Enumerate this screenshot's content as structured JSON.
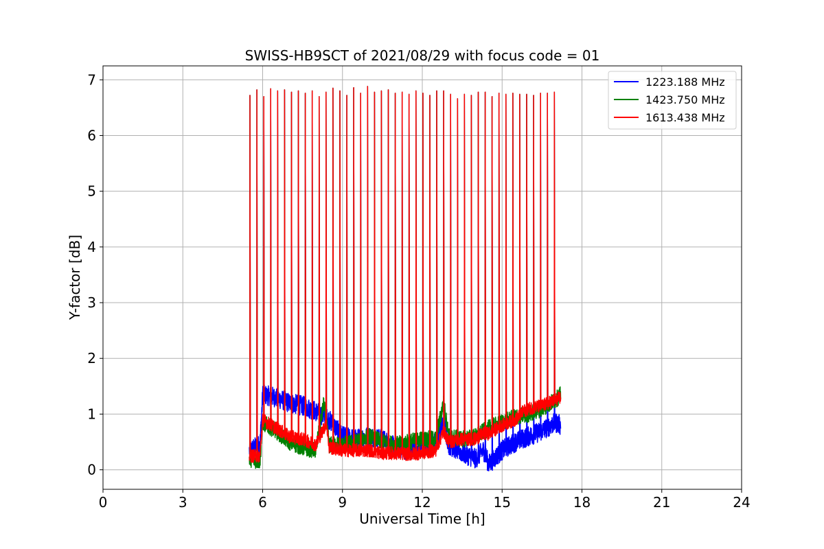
{
  "chart_data": {
    "type": "line",
    "title": "SWISS-HB9SCT of 2021/08/29 with focus code = 01",
    "xlabel": "Universal Time [h]",
    "ylabel": "Y-factor [dB]",
    "xlim": [
      0,
      24
    ],
    "ylim": [
      -0.35,
      7.25
    ],
    "xticks": [
      0,
      3,
      6,
      9,
      12,
      15,
      18,
      21,
      24
    ],
    "yticks": [
      0,
      1,
      2,
      3,
      4,
      5,
      6,
      7
    ],
    "xtick_labels": [
      "0",
      "3",
      "6",
      "9",
      "12",
      "15",
      "18",
      "21",
      "24"
    ],
    "ytick_labels": [
      "0",
      "1",
      "2",
      "3",
      "4",
      "5",
      "6",
      "7"
    ],
    "grid": true,
    "legend_position": "upper right",
    "series": [
      {
        "name": "1223.188 MHz",
        "color": "#0000ff",
        "baseline": [
          [
            5.5,
            0.35
          ],
          [
            5.9,
            0.45
          ],
          [
            6.0,
            1.35
          ],
          [
            6.5,
            1.3
          ],
          [
            7.0,
            1.2
          ],
          [
            7.5,
            1.15
          ],
          [
            8.0,
            1.05
          ],
          [
            8.5,
            0.9
          ],
          [
            9.0,
            0.6
          ],
          [
            9.5,
            0.55
          ],
          [
            10.0,
            0.6
          ],
          [
            10.5,
            0.55
          ],
          [
            11.0,
            0.4
          ],
          [
            11.5,
            0.35
          ],
          [
            12.0,
            0.45
          ],
          [
            12.5,
            0.5
          ],
          [
            12.8,
            0.85
          ],
          [
            13.0,
            0.45
          ],
          [
            13.5,
            0.3
          ],
          [
            14.0,
            0.2
          ],
          [
            14.3,
            0.35
          ],
          [
            14.5,
            0.1
          ],
          [
            15.0,
            0.35
          ],
          [
            15.5,
            0.5
          ],
          [
            16.0,
            0.6
          ],
          [
            16.5,
            0.7
          ],
          [
            17.0,
            0.85
          ],
          [
            17.2,
            0.8
          ]
        ],
        "spike_amplitude": 0.18
      },
      {
        "name": "1423.750 MHz",
        "color": "#008000",
        "baseline": [
          [
            5.5,
            0.2
          ],
          [
            5.9,
            0.15
          ],
          [
            6.0,
            0.85
          ],
          [
            6.5,
            0.7
          ],
          [
            7.0,
            0.5
          ],
          [
            7.5,
            0.4
          ],
          [
            8.0,
            0.35
          ],
          [
            8.3,
            1.2
          ],
          [
            8.5,
            0.45
          ],
          [
            9.0,
            0.45
          ],
          [
            9.5,
            0.5
          ],
          [
            10.0,
            0.6
          ],
          [
            10.5,
            0.5
          ],
          [
            11.0,
            0.45
          ],
          [
            11.5,
            0.5
          ],
          [
            12.0,
            0.55
          ],
          [
            12.5,
            0.55
          ],
          [
            12.8,
            1.2
          ],
          [
            13.0,
            0.6
          ],
          [
            13.5,
            0.55
          ],
          [
            14.0,
            0.6
          ],
          [
            14.5,
            0.75
          ],
          [
            15.0,
            0.85
          ],
          [
            15.5,
            0.95
          ],
          [
            16.0,
            1.0
          ],
          [
            16.5,
            1.1
          ],
          [
            17.0,
            1.25
          ],
          [
            17.2,
            1.35
          ]
        ],
        "spike_amplitude": 0.15
      },
      {
        "name": "1613.438 MHz",
        "color": "#ff0000",
        "baseline": [
          [
            5.5,
            0.25
          ],
          [
            5.9,
            0.25
          ],
          [
            6.0,
            0.9
          ],
          [
            6.5,
            0.75
          ],
          [
            7.0,
            0.6
          ],
          [
            7.5,
            0.55
          ],
          [
            8.0,
            0.45
          ],
          [
            8.4,
            0.85
          ],
          [
            8.5,
            0.4
          ],
          [
            9.0,
            0.35
          ],
          [
            9.5,
            0.35
          ],
          [
            10.0,
            0.35
          ],
          [
            10.5,
            0.3
          ],
          [
            11.0,
            0.3
          ],
          [
            11.5,
            0.28
          ],
          [
            12.0,
            0.3
          ],
          [
            12.5,
            0.35
          ],
          [
            12.8,
            0.7
          ],
          [
            13.0,
            0.5
          ],
          [
            13.5,
            0.55
          ],
          [
            14.0,
            0.55
          ],
          [
            14.3,
            0.65
          ],
          [
            14.5,
            0.65
          ],
          [
            15.0,
            0.8
          ],
          [
            15.5,
            0.9
          ],
          [
            15.8,
            1.05
          ],
          [
            16.0,
            1.1
          ],
          [
            16.5,
            1.15
          ],
          [
            17.0,
            1.25
          ],
          [
            17.2,
            1.3
          ]
        ],
        "spike_amplitude": 0.12
      }
    ],
    "peaks_x": [
      5.52,
      5.78,
      6.04,
      6.3,
      6.56,
      6.82,
      7.08,
      7.34,
      7.6,
      7.86,
      8.12,
      8.38,
      8.64,
      8.9,
      9.16,
      9.42,
      9.68,
      9.94,
      10.2,
      10.46,
      10.72,
      10.98,
      11.24,
      11.5,
      11.76,
      12.02,
      12.28,
      12.54,
      12.8,
      13.06,
      13.32,
      13.58,
      13.84,
      14.1,
      14.36,
      14.62,
      14.88,
      15.14,
      15.4,
      15.66,
      15.92,
      16.18,
      16.44,
      16.7,
      16.96
    ],
    "peaks_y": [
      6.72,
      6.82,
      6.7,
      6.84,
      6.8,
      6.82,
      6.78,
      6.8,
      6.76,
      6.8,
      6.7,
      6.78,
      6.85,
      6.8,
      6.72,
      6.86,
      6.76,
      6.88,
      6.78,
      6.8,
      6.82,
      6.76,
      6.78,
      6.74,
      6.8,
      6.76,
      6.72,
      6.8,
      6.8,
      6.74,
      6.66,
      6.74,
      6.72,
      6.78,
      6.78,
      6.7,
      6.76,
      6.74,
      6.76,
      6.74,
      6.74,
      6.72,
      6.76,
      6.76,
      6.78
    ]
  }
}
